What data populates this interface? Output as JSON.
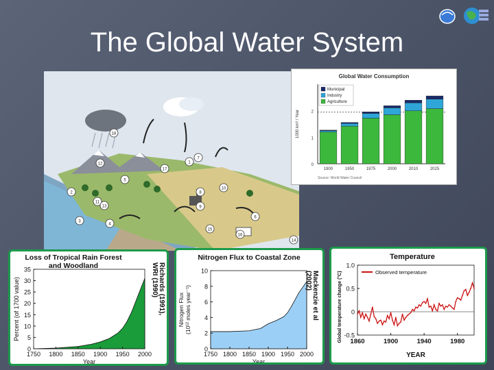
{
  "slide": {
    "title": "The Global Water System"
  },
  "colors": {
    "background": "#515a6e",
    "panel_border": "#1c9a4a",
    "forest_fill": "#1a9c3a",
    "nitrogen_fill": "#9ccff5",
    "temperature_line": "#cc1111",
    "municipal": "#1a2a6b",
    "industry": "#2fa6d8",
    "agriculture": "#3cb83c"
  },
  "diagram": {
    "icon": "water-cycle-landscape",
    "markers": [
      "1",
      "2",
      "3",
      "4",
      "5",
      "6",
      "7",
      "8",
      "9",
      "10",
      "11",
      "12",
      "13",
      "14",
      "15",
      "16",
      "17",
      "18"
    ]
  },
  "captions": {
    "forest_source": "Richards (1991), WRI (1990)",
    "nitrogen_source": "Mackenzie et al (2002)"
  },
  "chart_data": [
    {
      "type": "bar",
      "title": "Global Water Consumption",
      "ylabel": "1000 km³ / Year",
      "categories": [
        "1900",
        "1950",
        "1975",
        "2000",
        "2010",
        "2025"
      ],
      "ylim": [
        0,
        3
      ],
      "yticks": [
        "0",
        "1",
        "2"
      ],
      "stacked": true,
      "series": [
        {
          "name": "Agriculture",
          "values": [
            1.2,
            1.42,
            1.72,
            1.85,
            2.0,
            2.08
          ]
        },
        {
          "name": "Industry",
          "values": [
            0.05,
            0.1,
            0.18,
            0.26,
            0.3,
            0.36
          ]
        },
        {
          "name": "Municipal",
          "values": [
            0.02,
            0.04,
            0.06,
            0.08,
            0.1,
            0.12
          ]
        }
      ],
      "reference_line": 1.95,
      "footnote": "Source: World Water Council"
    },
    {
      "type": "area",
      "title": "Loss of Tropical Rain Forest and Woodland",
      "xlabel": "Year",
      "ylabel": "Percent (of 1700 value)",
      "xlim": [
        1750,
        2000
      ],
      "ylim": [
        0,
        35
      ],
      "xticks": [
        1750,
        1800,
        1850,
        1900,
        1950,
        2000
      ],
      "yticks": [
        0,
        5,
        10,
        15,
        20,
        25,
        30,
        35
      ],
      "x": [
        1750,
        1800,
        1850,
        1880,
        1900,
        1920,
        1940,
        1950,
        1960,
        1970,
        1980,
        1990,
        2000
      ],
      "y": [
        0,
        0.3,
        1,
        2,
        3,
        4.5,
        7,
        9,
        12,
        16,
        21,
        26,
        31
      ]
    },
    {
      "type": "area",
      "title": "Nitrogen Flux to Coastal Zone",
      "xlabel": "Year",
      "ylabel": "Nitrogen Flux (10¹² moles year⁻¹)",
      "xlim": [
        1750,
        2000
      ],
      "ylim": [
        0,
        10
      ],
      "xticks": [
        1750,
        1800,
        1850,
        1900,
        1950,
        2000
      ],
      "yticks": [
        0,
        2,
        4,
        6,
        8,
        10
      ],
      "x": [
        1750,
        1800,
        1850,
        1880,
        1900,
        1920,
        1940,
        1950,
        1960,
        1970,
        1980,
        1990,
        2000
      ],
      "y": [
        2.2,
        2.2,
        2.3,
        2.6,
        3.2,
        3.6,
        4.1,
        4.6,
        5.4,
        6.3,
        7.2,
        7.9,
        8.6
      ]
    },
    {
      "type": "line",
      "title": "Temperature",
      "xlabel": "YEAR",
      "ylabel": "Global temperature change (°C)",
      "legend": "Observed temperature",
      "legend_position": "top-left",
      "xlim": [
        1860,
        2000
      ],
      "ylim": [
        -0.5,
        1.0
      ],
      "xticks": [
        1860,
        1900,
        1940,
        1980
      ],
      "yticks": [
        -0.5,
        0,
        0.5,
        1.0
      ],
      "ytick_labels": [
        "-0.5",
        "0",
        "0.5",
        "1.0"
      ],
      "series": [
        {
          "name": "Observed temperature",
          "x": [
            1860,
            1862,
            1864,
            1866,
            1868,
            1870,
            1872,
            1874,
            1876,
            1878,
            1880,
            1882,
            1884,
            1886,
            1888,
            1890,
            1892,
            1894,
            1896,
            1898,
            1900,
            1902,
            1904,
            1906,
            1908,
            1910,
            1912,
            1914,
            1916,
            1918,
            1920,
            1922,
            1924,
            1926,
            1928,
            1930,
            1932,
            1934,
            1936,
            1938,
            1940,
            1942,
            1944,
            1946,
            1948,
            1950,
            1952,
            1954,
            1956,
            1958,
            1960,
            1962,
            1964,
            1966,
            1968,
            1970,
            1972,
            1974,
            1976,
            1978,
            1980,
            1982,
            1984,
            1986,
            1988,
            1990,
            1992,
            1994,
            1996,
            1998,
            2000
          ],
          "values": [
            -0.05,
            0.02,
            -0.12,
            -0.02,
            -0.15,
            -0.05,
            -0.12,
            -0.2,
            -0.05,
            0.1,
            -0.1,
            -0.15,
            -0.25,
            -0.2,
            -0.18,
            -0.28,
            -0.2,
            -0.22,
            -0.08,
            -0.15,
            -0.02,
            -0.18,
            -0.28,
            -0.12,
            -0.3,
            -0.25,
            -0.22,
            -0.05,
            -0.18,
            -0.12,
            -0.08,
            -0.05,
            -0.02,
            0.05,
            0.02,
            0.1,
            0.08,
            0.15,
            0.12,
            0.2,
            0.22,
            0.18,
            0.28,
            0.1,
            0.12,
            0.02,
            0.15,
            0.05,
            0.02,
            0.18,
            0.12,
            0.15,
            0.05,
            0.12,
            0.1,
            0.15,
            0.12,
            0.08,
            0.05,
            0.22,
            0.3,
            0.28,
            0.25,
            0.35,
            0.45,
            0.48,
            0.35,
            0.42,
            0.5,
            0.62,
            0.5
          ]
        }
      ]
    }
  ]
}
